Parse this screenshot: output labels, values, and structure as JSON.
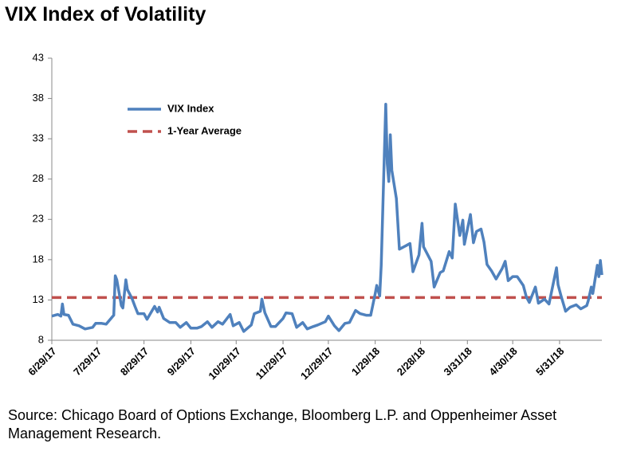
{
  "chart_data": {
    "type": "line",
    "title": "VIX Index of Volatility",
    "source": "Source: Chicago Board of Options Exchange, Bloomberg L.P. and Oppenheimer Asset Management Research.",
    "x": [
      "2017-06-29",
      "2017-07-03",
      "2017-07-05",
      "2017-07-06",
      "2017-07-07",
      "2017-07-10",
      "2017-07-13",
      "2017-07-17",
      "2017-07-21",
      "2017-07-26",
      "2017-07-28",
      "2017-08-01",
      "2017-08-04",
      "2017-08-08",
      "2017-08-09",
      "2017-08-10",
      "2017-08-11",
      "2017-08-14",
      "2017-08-15",
      "2017-08-17",
      "2017-08-18",
      "2017-08-21",
      "2017-08-23",
      "2017-08-25",
      "2017-08-29",
      "2017-08-31",
      "2017-09-05",
      "2017-09-07",
      "2017-09-08",
      "2017-09-11",
      "2017-09-15",
      "2017-09-19",
      "2017-09-22",
      "2017-09-26",
      "2017-09-29",
      "2017-10-03",
      "2017-10-06",
      "2017-10-10",
      "2017-10-13",
      "2017-10-17",
      "2017-10-20",
      "2017-10-25",
      "2017-10-27",
      "2017-10-31",
      "2017-11-03",
      "2017-11-08",
      "2017-11-10",
      "2017-11-14",
      "2017-11-15",
      "2017-11-17",
      "2017-11-21",
      "2017-11-24",
      "2017-11-29",
      "2017-12-01",
      "2017-12-05",
      "2017-12-08",
      "2017-12-12",
      "2017-12-15",
      "2017-12-19",
      "2017-12-22",
      "2017-12-27",
      "2017-12-29",
      "2018-01-02",
      "2018-01-05",
      "2018-01-09",
      "2018-01-12",
      "2018-01-16",
      "2018-01-19",
      "2018-01-23",
      "2018-01-26",
      "2018-01-29",
      "2018-01-30",
      "2018-02-01",
      "2018-02-02",
      "2018-02-05",
      "2018-02-06",
      "2018-02-07",
      "2018-02-08",
      "2018-02-09",
      "2018-02-12",
      "2018-02-14",
      "2018-02-16",
      "2018-02-21",
      "2018-02-23",
      "2018-02-27",
      "2018-03-01",
      "2018-03-02",
      "2018-03-07",
      "2018-03-09",
      "2018-03-13",
      "2018-03-15",
      "2018-03-19",
      "2018-03-21",
      "2018-03-23",
      "2018-03-26",
      "2018-03-28",
      "2018-03-29",
      "2018-04-02",
      "2018-04-04",
      "2018-04-06",
      "2018-04-09",
      "2018-04-11",
      "2018-04-13",
      "2018-04-16",
      "2018-04-19",
      "2018-04-23",
      "2018-04-25",
      "2018-04-27",
      "2018-04-30",
      "2018-05-03",
      "2018-05-07",
      "2018-05-09",
      "2018-05-11",
      "2018-05-15",
      "2018-05-17",
      "2018-05-21",
      "2018-05-24",
      "2018-05-29",
      "2018-05-30",
      "2018-06-01",
      "2018-06-04",
      "2018-06-07",
      "2018-06-11",
      "2018-06-14",
      "2018-06-18",
      "2018-06-19",
      "2018-06-21",
      "2018-06-22",
      "2018-06-25",
      "2018-06-26",
      "2018-06-27",
      "2018-06-28"
    ],
    "series": [
      {
        "name": "VIX Index",
        "color": "#4f81bd",
        "values": [
          11.0,
          11.2,
          11.0,
          12.5,
          11.2,
          11.1,
          10.0,
          9.8,
          9.4,
          9.6,
          10.1,
          10.1,
          10.0,
          10.9,
          11.1,
          16.0,
          15.5,
          12.3,
          12.0,
          15.5,
          14.3,
          13.2,
          12.2,
          11.3,
          11.3,
          10.6,
          12.2,
          11.5,
          12.1,
          10.7,
          10.2,
          10.2,
          9.6,
          10.2,
          9.5,
          9.5,
          9.7,
          10.3,
          9.6,
          10.3,
          10.0,
          11.2,
          9.8,
          10.2,
          9.1,
          9.9,
          11.3,
          11.6,
          13.1,
          11.4,
          9.7,
          9.7,
          10.7,
          11.4,
          11.3,
          9.6,
          10.2,
          9.4,
          9.7,
          9.9,
          10.3,
          11.0,
          9.8,
          9.2,
          10.1,
          10.2,
          11.7,
          11.3,
          11.1,
          11.1,
          13.8,
          14.8,
          13.5,
          17.3,
          37.3,
          29.9,
          27.7,
          33.5,
          29.1,
          25.6,
          19.3,
          19.5,
          20.0,
          16.5,
          18.6,
          22.5,
          19.6,
          17.8,
          14.6,
          16.4,
          16.6,
          19.0,
          18.2,
          24.9,
          21.0,
          22.9,
          19.9,
          23.6,
          20.1,
          21.5,
          21.8,
          20.2,
          17.4,
          16.6,
          15.6,
          16.9,
          17.8,
          15.4,
          15.9,
          15.9,
          14.8,
          13.4,
          12.7,
          14.6,
          12.6,
          13.1,
          12.5,
          17.0,
          14.9,
          13.5,
          11.6,
          12.1,
          12.4,
          11.9,
          12.3,
          12.9,
          14.6,
          13.8,
          17.3,
          15.9,
          17.9,
          16.1
        ]
      }
    ],
    "reference_lines": [
      {
        "name": "1-Year Average",
        "value": 13.3,
        "color": "#c0504d",
        "dashed": true
      }
    ],
    "xlim": [
      "2017-06-29",
      "2018-06-28"
    ],
    "xticks": [
      {
        "value": "2017-06-29",
        "label": "6/29/17"
      },
      {
        "value": "2017-07-29",
        "label": "7/29/17"
      },
      {
        "value": "2017-08-29",
        "label": "8/29/17"
      },
      {
        "value": "2017-09-29",
        "label": "9/29/17"
      },
      {
        "value": "2017-10-29",
        "label": "10/29/17"
      },
      {
        "value": "2017-11-29",
        "label": "11/29/17"
      },
      {
        "value": "2017-12-29",
        "label": "12/29/17"
      },
      {
        "value": "2018-01-29",
        "label": "1/29/18"
      },
      {
        "value": "2018-02-28",
        "label": "2/28/18"
      },
      {
        "value": "2018-03-31",
        "label": "3/31/18"
      },
      {
        "value": "2018-04-30",
        "label": "4/30/18"
      },
      {
        "value": "2018-05-31",
        "label": "5/31/18"
      }
    ],
    "ylim": [
      8,
      43
    ],
    "yticks": [
      8,
      13,
      18,
      23,
      28,
      33,
      38,
      43
    ],
    "grid": false,
    "legend": "upper left"
  }
}
